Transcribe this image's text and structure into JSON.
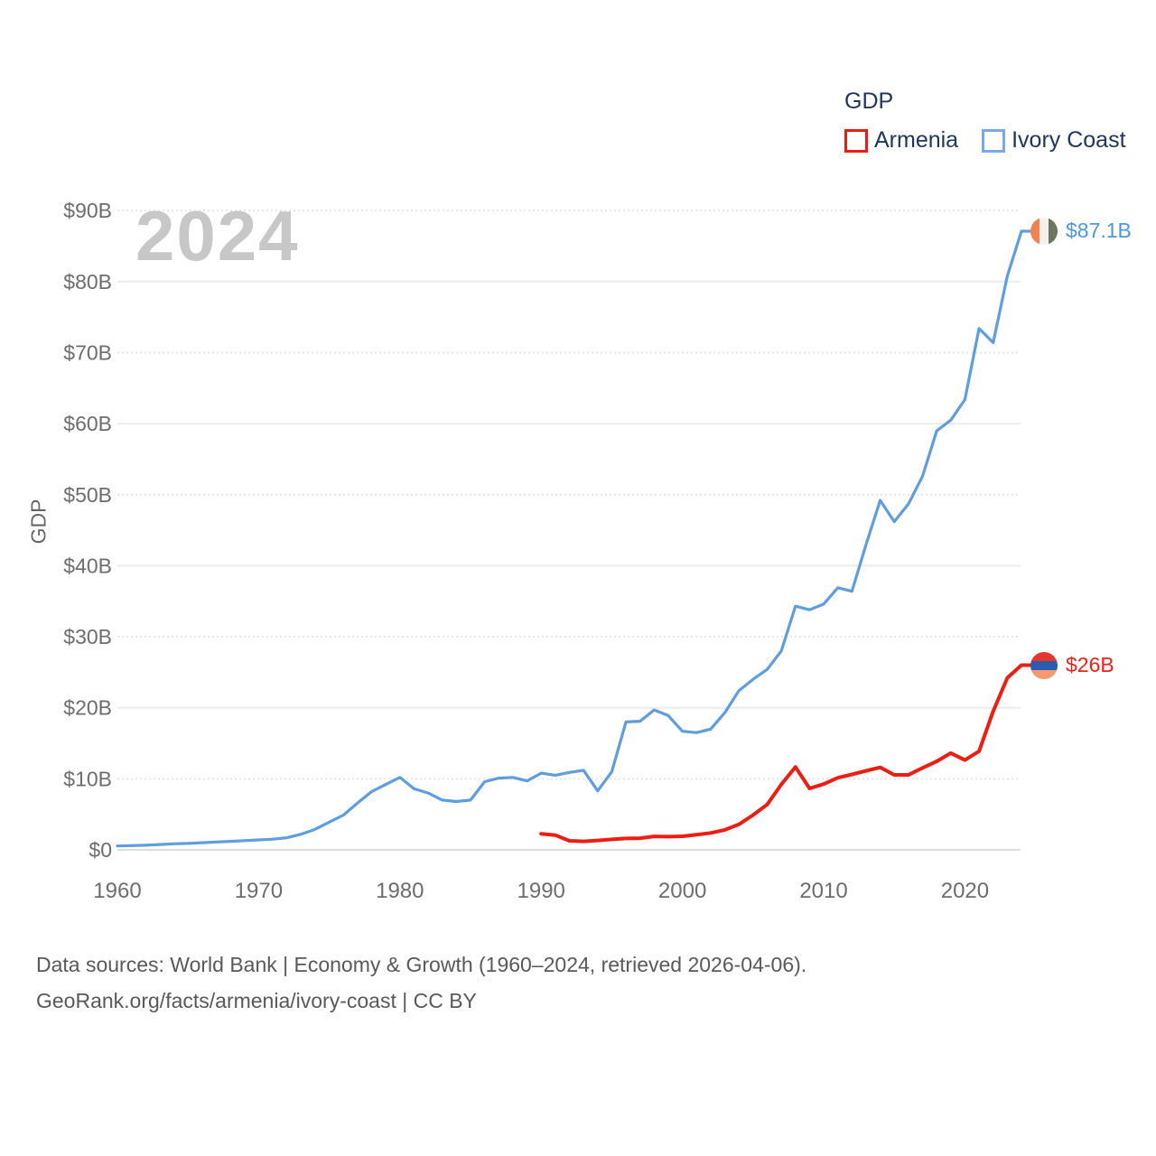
{
  "watermark": "2024",
  "legend": {
    "title": "GDP",
    "items": [
      {
        "label": "Armenia",
        "color": "#ee1b10"
      },
      {
        "label": "Ivory Coast",
        "color": "#74abe8"
      }
    ]
  },
  "y_axis": {
    "label": "GDP",
    "ticks": [
      "$0",
      "$10B",
      "$20B",
      "$30B",
      "$40B",
      "$50B",
      "$60B",
      "$70B",
      "$80B",
      "$90B"
    ]
  },
  "x_axis": {
    "ticks": [
      "1960",
      "1970",
      "1980",
      "1990",
      "2000",
      "2010",
      "2020"
    ]
  },
  "end_labels": [
    {
      "series": "Ivory Coast",
      "text": "$87.1B",
      "color": "#4f97dd",
      "flag": "ivory-coast-flag",
      "flag_orientation": "vertical",
      "flag_colors": [
        "#f4824e",
        "#f3f1ec",
        "#6d7660"
      ]
    },
    {
      "series": "Armenia",
      "text": "$26B",
      "color": "#ee2214",
      "flag": "armenia-flag",
      "flag_orientation": "horizontal",
      "flag_colors": [
        "#e8352c",
        "#2b5cad",
        "#f79871"
      ]
    }
  ],
  "footer": {
    "line1": "Data sources: World Bank | Economy & Growth (1960–2024, retrieved 2026-04-06).",
    "line2": "GeoRank.org/facts/armenia/ivory-coast | CC BY"
  },
  "chart_data": {
    "type": "line",
    "title": "GDP",
    "xlabel": "",
    "ylabel": "GDP",
    "xlim": [
      1960,
      2024
    ],
    "ylim": [
      0,
      90
    ],
    "grid": true,
    "legend_position": "top-right",
    "units": "billions USD",
    "series": [
      {
        "name": "Ivory Coast",
        "color": "#5e9ede",
        "x_range": [
          1960,
          2024
        ],
        "values": [
          0.55,
          0.6,
          0.65,
          0.75,
          0.85,
          0.9,
          1.0,
          1.1,
          1.2,
          1.3,
          1.4,
          1.5,
          1.7,
          2.2,
          2.9,
          3.9,
          4.9,
          6.6,
          8.2,
          9.2,
          10.2,
          8.6,
          8.0,
          7.0,
          6.8,
          7.0,
          9.6,
          10.1,
          10.2,
          9.7,
          10.8,
          10.5,
          10.9,
          11.2,
          8.3,
          11.0,
          18.0,
          18.1,
          19.7,
          18.9,
          16.7,
          16.5,
          17.0,
          19.3,
          22.4,
          24.0,
          25.4,
          28.0,
          34.3,
          33.8,
          34.6,
          36.9,
          36.4,
          43.0,
          49.2,
          46.2,
          48.7,
          52.6,
          59.0,
          60.5,
          63.4,
          73.4,
          71.4,
          80.8,
          87.1
        ]
      },
      {
        "name": "Armenia",
        "color": "#ee1d11",
        "x_range": [
          1990,
          2024
        ],
        "values": [
          2.26,
          2.07,
          1.27,
          1.2,
          1.32,
          1.47,
          1.6,
          1.64,
          1.89,
          1.85,
          1.91,
          2.12,
          2.38,
          2.81,
          3.58,
          4.9,
          6.38,
          9.21,
          11.66,
          8.65,
          9.26,
          10.14,
          10.62,
          11.12,
          11.61,
          10.55,
          10.55,
          11.53,
          12.46,
          13.62,
          12.64,
          13.88,
          19.51,
          24.21,
          26.0
        ]
      }
    ]
  }
}
